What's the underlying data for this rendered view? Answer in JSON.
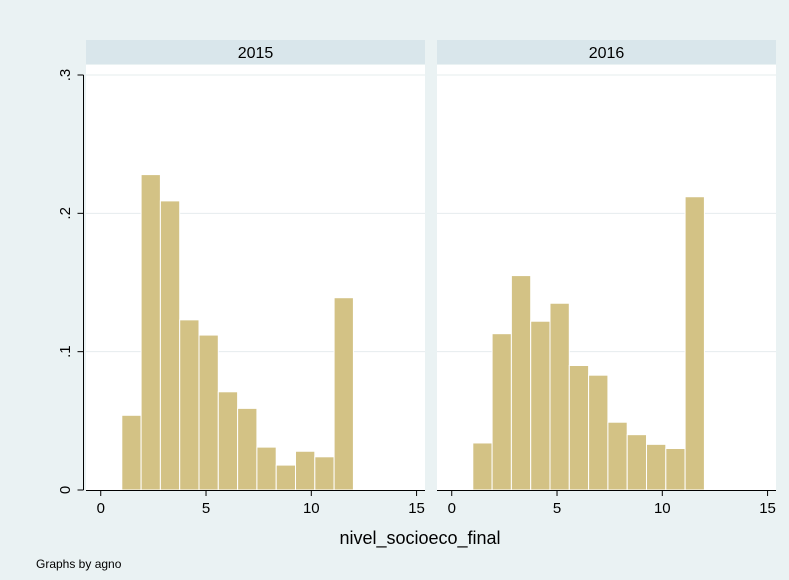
{
  "colors": {
    "background": "#eaf2f3",
    "plot_area": "#ffffff",
    "strip": "#d9e6eb",
    "bar_fill": "#d3c285",
    "bar_stroke": "#ffffff",
    "grid": "#e6ecee",
    "axis": "#000000"
  },
  "chart_data": {
    "type": "bar",
    "xlabel": "nivel_socioeco_final",
    "ylabel": "",
    "note": "Graphs by agno",
    "xlim": [
      -0.7,
      15.4
    ],
    "ylim": [
      0,
      0.3
    ],
    "x_ticks": [
      0,
      5,
      10,
      15
    ],
    "x_tick_labels": [
      "0",
      "5",
      "10",
      "15"
    ],
    "y_ticks": [
      0,
      0.1,
      0.2,
      0.3
    ],
    "y_tick_labels": [
      "0",
      ".1",
      ".2",
      ".3"
    ],
    "grid": true,
    "bin_edges": [
      1,
      1.917,
      2.833,
      3.75,
      4.667,
      5.583,
      6.5,
      7.417,
      8.333,
      9.25,
      10.167,
      11.083,
      12
    ],
    "panels": [
      {
        "label": "2015",
        "values": [
          0.054,
          0.228,
          0.209,
          0.123,
          0.112,
          0.071,
          0.059,
          0.031,
          0.018,
          0.028,
          0.024,
          0.139
        ]
      },
      {
        "label": "2016",
        "values": [
          0.034,
          0.113,
          0.155,
          0.122,
          0.135,
          0.09,
          0.083,
          0.049,
          0.04,
          0.033,
          0.03,
          0.212
        ]
      }
    ]
  }
}
